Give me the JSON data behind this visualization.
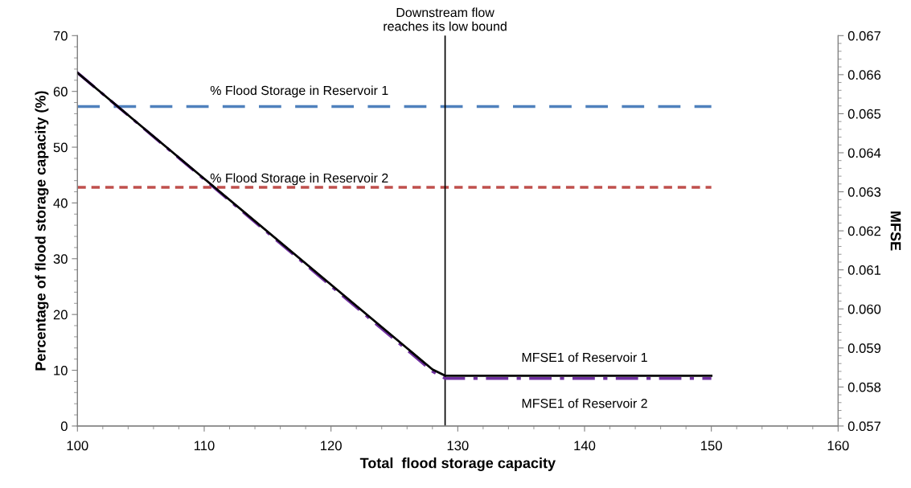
{
  "chart_data": {
    "type": "line",
    "xlabel": "Total  flood storage capacity",
    "ylabel": "Percentage of flood storage capacity (%)",
    "y2label": "MFSE",
    "xlim": [
      100,
      160
    ],
    "xticks": [
      100,
      110,
      120,
      130,
      140,
      150,
      160
    ],
    "ylim": [
      0,
      70
    ],
    "yticks": [
      0,
      10,
      20,
      30,
      40,
      50,
      60,
      70
    ],
    "y2lim": [
      0.057,
      0.067
    ],
    "y2ticks": [
      {
        "value": 0.057,
        "label": "0.057"
      },
      {
        "value": 0.058,
        "label": "0.058"
      },
      {
        "value": 0.059,
        "label": "0.059"
      },
      {
        "value": 0.06,
        "label": "0.060"
      },
      {
        "value": 0.061,
        "label": "0.061"
      },
      {
        "value": 0.062,
        "label": "0.062"
      },
      {
        "value": 0.063,
        "label": "0.063"
      },
      {
        "value": 0.064,
        "label": "0.064"
      },
      {
        "value": 0.065,
        "label": "0.065"
      },
      {
        "value": 0.066,
        "label": "0.066"
      },
      {
        "value": 0.067,
        "label": "0.067"
      }
    ],
    "grid": false,
    "legend": false,
    "marker": "none",
    "ref_lines": [
      {
        "axis": "x",
        "value": 129,
        "label": "Downstream flow\nreaches its low bound",
        "color": "#000000",
        "line_style": "solid"
      }
    ],
    "series": [
      {
        "name": "% Flood Storage in Reservoir 1",
        "color": "#4f81bd",
        "line_style": "dashed",
        "x": [
          100,
          150
        ],
        "values": [
          57.3,
          57.3
        ]
      },
      {
        "name": "% Flood Storage in Reservoir 2",
        "color": "#c0504d",
        "line_style": "dotted",
        "x": [
          100,
          150
        ],
        "values": [
          42.8,
          42.8
        ]
      },
      {
        "name": "MFSE1 of Reservoir 1",
        "color": "#000000",
        "line_style": "solid",
        "axis": "y2",
        "x": [
          100,
          128,
          129,
          150
        ],
        "values": [
          0.06605,
          0.05845,
          0.05829,
          0.05829
        ]
      },
      {
        "name": "MFSE1 of Reservoir 2",
        "color": "#7030a0",
        "line_style": "dashdot",
        "axis": "y2",
        "x": [
          100,
          128,
          129,
          150
        ],
        "values": [
          0.06605,
          0.0584,
          0.05822,
          0.05822
        ]
      }
    ]
  }
}
